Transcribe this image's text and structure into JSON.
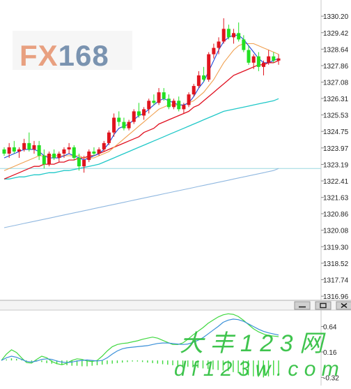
{
  "logo": {
    "text": "FX168",
    "color_fx": "#e8a080",
    "color_num": "#7a93b0"
  },
  "watermark": {
    "line1": "大 丰 1 2 3 网",
    "line2": "d f 1 2 3 w . c o m",
    "color": "#2fbf3f"
  },
  "window_buttons": [
    {
      "name": "minimize-button",
      "icon": "minimize-icon"
    },
    {
      "name": "maximize-button",
      "icon": "maximize-icon"
    },
    {
      "name": "close-button",
      "icon": "close-icon"
    }
  ],
  "colors": {
    "up": "#e0141e",
    "down": "#22e022",
    "ma_fast": "#1a44d8",
    "ma_mid": "#f0a050",
    "ma_red": "#e01020",
    "ma_teal": "#20c8c8",
    "ma_slow": "#90b8e0",
    "hline": "#9ad8e0",
    "macd_line": "#3a8fd8",
    "signal_line": "#40d840",
    "hist": "#3cd83c"
  },
  "chart_data": [
    {
      "type": "candlestick",
      "name": "price",
      "y_ticks": [
        1330.2,
        1329.42,
        1328.64,
        1327.86,
        1327.08,
        1326.31,
        1325.53,
        1324.75,
        1323.97,
        1323.19,
        1322.41,
        1321.63,
        1320.86,
        1320.08,
        1319.3,
        1318.52,
        1317.74,
        1316.96
      ],
      "y_tick_labels": [
        "1330.20",
        "1329.42",
        "1328.64",
        "1327.86",
        "1327.08",
        "1326.31",
        "1325.53",
        "1324.75",
        "1323.97",
        "1323.19",
        "1322.41",
        "1321.63",
        "1320.86",
        "1320.08",
        "1319.30",
        "1318.52",
        "1317.74",
        "1316.96"
      ],
      "ylim": [
        1316.7,
        1330.7
      ],
      "hline": 1323.0,
      "candles": [
        [
          1323.9,
          1324.0,
          1323.6,
          1323.7
        ],
        [
          1323.7,
          1324.2,
          1323.5,
          1324.0
        ],
        [
          1324.0,
          1324.3,
          1323.7,
          1323.8
        ],
        [
          1323.8,
          1324.0,
          1323.5,
          1323.9
        ],
        [
          1323.9,
          1324.4,
          1323.8,
          1324.2
        ],
        [
          1324.2,
          1324.7,
          1323.8,
          1323.9
        ],
        [
          1323.9,
          1324.3,
          1323.7,
          1324.1
        ],
        [
          1324.1,
          1324.3,
          1323.4,
          1323.6
        ],
        [
          1323.6,
          1323.9,
          1323.0,
          1323.2
        ],
        [
          1323.2,
          1323.8,
          1323.1,
          1323.7
        ],
        [
          1323.7,
          1323.9,
          1323.4,
          1323.5
        ],
        [
          1323.5,
          1323.8,
          1323.3,
          1323.7
        ],
        [
          1323.7,
          1324.0,
          1323.5,
          1323.9
        ],
        [
          1323.9,
          1324.2,
          1323.7,
          1324.0
        ],
        [
          1324.0,
          1324.1,
          1323.4,
          1323.5
        ],
        [
          1323.5,
          1323.7,
          1322.9,
          1323.1
        ],
        [
          1323.1,
          1323.6,
          1322.8,
          1323.4
        ],
        [
          1323.4,
          1323.9,
          1323.3,
          1323.8
        ],
        [
          1323.8,
          1324.0,
          1323.6,
          1323.7
        ],
        [
          1323.7,
          1324.0,
          1323.6,
          1323.9
        ],
        [
          1323.9,
          1324.3,
          1323.8,
          1324.2
        ],
        [
          1324.2,
          1324.8,
          1324.1,
          1324.7
        ],
        [
          1324.7,
          1325.6,
          1324.5,
          1325.4
        ],
        [
          1325.4,
          1325.7,
          1325.0,
          1325.2
        ],
        [
          1325.2,
          1325.4,
          1324.8,
          1324.9
        ],
        [
          1324.9,
          1325.3,
          1324.8,
          1325.2
        ],
        [
          1325.2,
          1325.8,
          1325.1,
          1325.7
        ],
        [
          1325.7,
          1326.1,
          1325.4,
          1325.5
        ],
        [
          1325.5,
          1325.9,
          1325.3,
          1325.8
        ],
        [
          1325.8,
          1326.3,
          1325.6,
          1326.2
        ],
        [
          1326.2,
          1326.5,
          1326.0,
          1326.1
        ],
        [
          1326.1,
          1326.8,
          1326.0,
          1326.6
        ],
        [
          1326.6,
          1326.8,
          1326.2,
          1326.3
        ],
        [
          1326.3,
          1326.5,
          1325.8,
          1325.9
        ],
        [
          1325.9,
          1326.3,
          1325.8,
          1326.2
        ],
        [
          1326.2,
          1326.4,
          1325.7,
          1325.8
        ],
        [
          1325.8,
          1326.1,
          1325.6,
          1326.0
        ],
        [
          1326.0,
          1326.6,
          1325.9,
          1326.5
        ],
        [
          1326.5,
          1327.0,
          1326.4,
          1326.9
        ],
        [
          1326.9,
          1327.6,
          1326.8,
          1327.4
        ],
        [
          1327.4,
          1327.8,
          1327.1,
          1327.2
        ],
        [
          1327.2,
          1328.5,
          1327.1,
          1328.4
        ],
        [
          1328.4,
          1328.9,
          1328.2,
          1328.7
        ],
        [
          1328.7,
          1329.2,
          1328.4,
          1329.0
        ],
        [
          1329.0,
          1330.1,
          1328.9,
          1329.6
        ],
        [
          1329.6,
          1329.8,
          1329.1,
          1329.2
        ],
        [
          1329.2,
          1329.6,
          1328.9,
          1329.4
        ],
        [
          1329.4,
          1329.9,
          1329.0,
          1329.1
        ],
        [
          1329.1,
          1329.3,
          1328.5,
          1328.6
        ],
        [
          1328.6,
          1328.8,
          1327.9,
          1328.0
        ],
        [
          1328.0,
          1328.4,
          1327.7,
          1328.3
        ],
        [
          1328.3,
          1328.5,
          1327.6,
          1327.8
        ],
        [
          1327.8,
          1328.1,
          1327.4,
          1328.0
        ],
        [
          1328.0,
          1328.6,
          1327.9,
          1328.3
        ],
        [
          1328.3,
          1328.5,
          1328.0,
          1328.1
        ],
        [
          1328.1,
          1328.4,
          1327.9,
          1328.2
        ]
      ],
      "ma_fast": [
        1323.5,
        1323.6,
        1323.7,
        1323.8,
        1323.9,
        1323.9,
        1323.9,
        1323.8,
        1323.6,
        1323.5,
        1323.5,
        1323.5,
        1323.6,
        1323.7,
        1323.6,
        1323.5,
        1323.4,
        1323.5,
        1323.6,
        1323.7,
        1323.9,
        1324.2,
        1324.6,
        1324.9,
        1325.0,
        1325.1,
        1325.3,
        1325.5,
        1325.6,
        1325.8,
        1326.0,
        1326.2,
        1326.3,
        1326.2,
        1326.1,
        1326.0,
        1326.0,
        1326.1,
        1326.4,
        1326.8,
        1327.1,
        1327.6,
        1328.1,
        1328.6,
        1329.0,
        1329.2,
        1329.3,
        1329.3,
        1329.1,
        1328.8,
        1328.5,
        1328.2,
        1328.0,
        1328.0,
        1328.1,
        1328.2
      ],
      "ma_mid": [
        1322.9,
        1323.0,
        1323.1,
        1323.2,
        1323.3,
        1323.4,
        1323.5,
        1323.6,
        1323.6,
        1323.6,
        1323.6,
        1323.6,
        1323.6,
        1323.6,
        1323.6,
        1323.6,
        1323.5,
        1323.5,
        1323.5,
        1323.6,
        1323.7,
        1323.8,
        1324.0,
        1324.2,
        1324.4,
        1324.6,
        1324.8,
        1325.0,
        1325.2,
        1325.4,
        1325.6,
        1325.8,
        1325.9,
        1326.0,
        1326.0,
        1326.0,
        1326.0,
        1326.1,
        1326.2,
        1326.4,
        1326.6,
        1326.9,
        1327.2,
        1327.6,
        1328.0,
        1328.3,
        1328.6,
        1328.8,
        1328.9,
        1328.9,
        1328.9,
        1328.8,
        1328.7,
        1328.6,
        1328.5,
        1328.4
      ],
      "ma_red": [
        1322.5,
        1322.6,
        1322.7,
        1322.8,
        1322.9,
        1323.0,
        1323.1,
        1323.1,
        1323.2,
        1323.2,
        1323.2,
        1323.3,
        1323.3,
        1323.4,
        1323.4,
        1323.5,
        1323.5,
        1323.6,
        1323.6,
        1323.7,
        1323.8,
        1323.9,
        1324.0,
        1324.1,
        1324.2,
        1324.3,
        1324.4,
        1324.5,
        1324.7,
        1324.8,
        1324.9,
        1325.1,
        1325.2,
        1325.3,
        1325.4,
        1325.5,
        1325.6,
        1325.7,
        1325.9,
        1326.0,
        1326.2,
        1326.4,
        1326.6,
        1326.8,
        1327.0,
        1327.2,
        1327.4,
        1327.5,
        1327.6,
        1327.7,
        1327.8,
        1327.9,
        1327.9,
        1328.0,
        1328.0,
        1328.1
      ],
      "ma_teal": [
        1322.5,
        1322.5,
        1322.55,
        1322.6,
        1322.6,
        1322.65,
        1322.7,
        1322.7,
        1322.75,
        1322.8,
        1322.8,
        1322.85,
        1322.9,
        1322.9,
        1322.95,
        1323.0,
        1323.05,
        1323.1,
        1323.15,
        1323.2,
        1323.3,
        1323.4,
        1323.5,
        1323.6,
        1323.7,
        1323.8,
        1323.9,
        1324.0,
        1324.1,
        1324.2,
        1324.3,
        1324.4,
        1324.5,
        1324.6,
        1324.7,
        1324.8,
        1324.9,
        1325.0,
        1325.1,
        1325.2,
        1325.3,
        1325.4,
        1325.5,
        1325.6,
        1325.7,
        1325.75,
        1325.8,
        1325.85,
        1325.9,
        1325.95,
        1326.0,
        1326.05,
        1326.1,
        1326.15,
        1326.2,
        1326.3
      ],
      "ma_slow": [
        1320.2,
        1320.25,
        1320.3,
        1320.35,
        1320.4,
        1320.45,
        1320.5,
        1320.55,
        1320.6,
        1320.65,
        1320.7,
        1320.75,
        1320.8,
        1320.85,
        1320.9,
        1320.95,
        1321.0,
        1321.05,
        1321.1,
        1321.15,
        1321.2,
        1321.25,
        1321.3,
        1321.35,
        1321.4,
        1321.45,
        1321.5,
        1321.55,
        1321.6,
        1321.65,
        1321.7,
        1321.75,
        1321.8,
        1321.85,
        1321.9,
        1321.95,
        1322.0,
        1322.05,
        1322.1,
        1322.15,
        1322.2,
        1322.25,
        1322.3,
        1322.35,
        1322.4,
        1322.45,
        1322.5,
        1322.55,
        1322.6,
        1322.65,
        1322.7,
        1322.75,
        1322.8,
        1322.85,
        1322.9,
        1323.0
      ]
    },
    {
      "type": "macd",
      "name": "indicator",
      "y_ticks": [
        0.64,
        0.16,
        -0.32
      ],
      "y_tick_labels": [
        "0.64",
        "0.16",
        "-0.32"
      ],
      "ylim": [
        -0.42,
        0.95
      ],
      "macd": [
        0.0,
        0.05,
        0.08,
        0.06,
        0.02,
        -0.02,
        -0.03,
        -0.01,
        0.02,
        0.03,
        0.02,
        -0.01,
        -0.03,
        -0.04,
        -0.03,
        -0.01,
        0.0,
        0.01,
        0.0,
        -0.01,
        0.0,
        0.05,
        0.12,
        0.18,
        0.22,
        0.24,
        0.25,
        0.26,
        0.27,
        0.28,
        0.3,
        0.32,
        0.33,
        0.33,
        0.32,
        0.31,
        0.3,
        0.31,
        0.34,
        0.38,
        0.43,
        0.5,
        0.57,
        0.64,
        0.72,
        0.76,
        0.78,
        0.77,
        0.74,
        0.69,
        0.64,
        0.59,
        0.55,
        0.52,
        0.5,
        0.48
      ],
      "signal": [
        0.0,
        0.12,
        0.2,
        0.15,
        0.05,
        -0.04,
        -0.05,
        0.02,
        0.08,
        0.05,
        -0.02,
        -0.06,
        -0.08,
        -0.05,
        0.0,
        0.03,
        0.02,
        -0.01,
        -0.02,
        0.0,
        0.08,
        0.18,
        0.26,
        0.3,
        0.32,
        0.33,
        0.35,
        0.37,
        0.4,
        0.42,
        0.44,
        0.42,
        0.38,
        0.34,
        0.3,
        0.3,
        0.33,
        0.4,
        0.48,
        0.55,
        0.62,
        0.7,
        0.76,
        0.82,
        0.86,
        0.88,
        0.87,
        0.83,
        0.76,
        0.68,
        0.6,
        0.54,
        0.5,
        0.47,
        0.46,
        0.45
      ],
      "hist": [
        0.0,
        0.02,
        0.04,
        0.03,
        0.01,
        -0.01,
        -0.02,
        -0.02,
        -0.03,
        -0.05,
        -0.06,
        -0.07,
        -0.08,
        -0.09,
        -0.1,
        -0.1,
        -0.11,
        -0.11,
        -0.1,
        -0.09,
        -0.08,
        -0.07,
        -0.06,
        -0.05,
        -0.04,
        -0.03,
        -0.02,
        -0.02,
        -0.03,
        -0.04,
        -0.05,
        -0.06,
        -0.07,
        -0.08,
        -0.09,
        -0.1,
        -0.11,
        -0.12,
        -0.13,
        -0.14,
        -0.15,
        -0.16,
        -0.17,
        -0.18,
        -0.19,
        -0.2,
        -0.22,
        -0.24,
        -0.26,
        -0.28,
        -0.3,
        -0.31,
        -0.32,
        -0.3,
        -0.28,
        -0.26
      ]
    }
  ]
}
